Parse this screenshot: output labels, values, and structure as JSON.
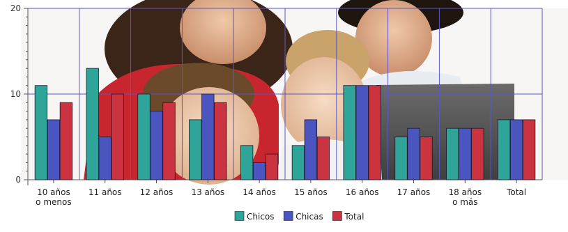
{
  "chart_data": {
    "type": "bar",
    "categories": [
      [
        "10 años",
        "o menos"
      ],
      [
        "11 años"
      ],
      [
        "12 años"
      ],
      [
        "13 años"
      ],
      [
        "14 años"
      ],
      [
        "15 años"
      ],
      [
        "16 años"
      ],
      [
        "17 años"
      ],
      [
        "18 años",
        "o más"
      ],
      [
        "Total"
      ]
    ],
    "series": [
      {
        "name": "Chicos",
        "color": "#2fa59a",
        "values": [
          11,
          13,
          10,
          7,
          4,
          4,
          11,
          5,
          6,
          7
        ]
      },
      {
        "name": "Chicas",
        "color": "#4b55c0",
        "values": [
          7,
          5,
          8,
          10,
          2,
          7,
          11,
          6,
          6,
          7
        ]
      },
      {
        "name": "Total",
        "color": "#cc3340",
        "values": [
          9,
          10,
          9,
          9,
          3,
          5,
          11,
          5,
          6,
          7
        ]
      }
    ],
    "y_ticks": [
      0,
      10,
      20
    ],
    "ylim": [
      0,
      20
    ],
    "grid": true,
    "legend_position": "bottom-center",
    "background_image": "family-with-children-at-laptop-photo"
  }
}
